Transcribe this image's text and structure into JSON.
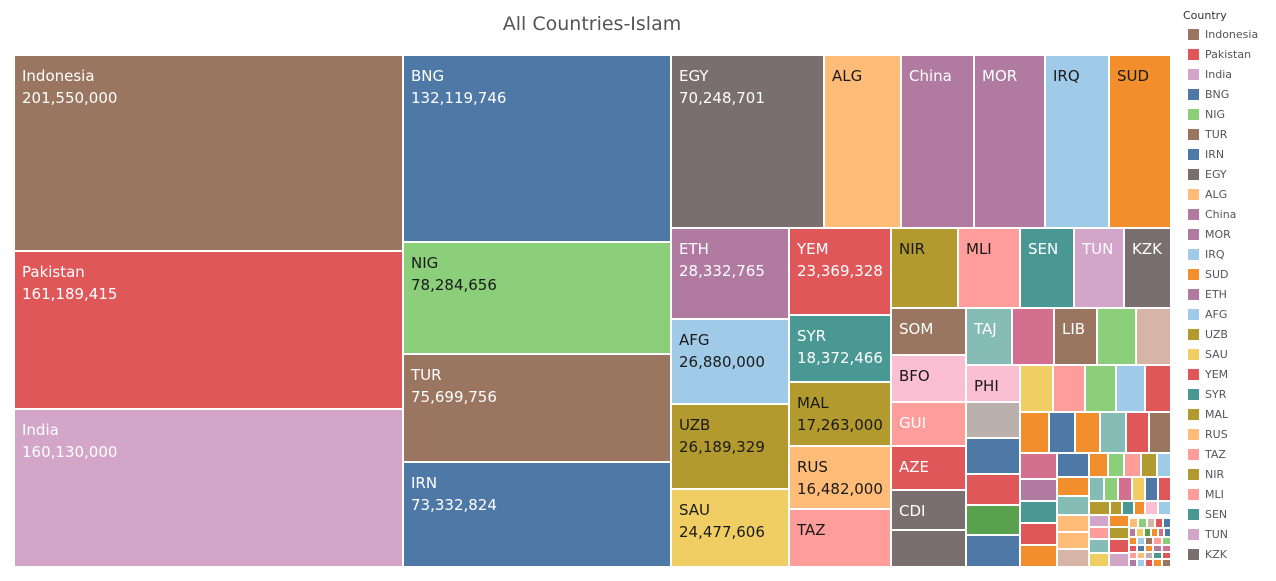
{
  "chart_data": {
    "type": "treemap",
    "title": "All Countries-Islam",
    "legend": {
      "title": "Country",
      "placement": "right",
      "entries": [
        "Indonesia",
        "Pakistan",
        "India",
        "BNG",
        "NIG",
        "TUR",
        "IRN",
        "EGY",
        "ALG",
        "China",
        "MOR",
        "IRQ",
        "SUD",
        "ETH",
        "AFG",
        "UZB",
        "SAU",
        "YEM",
        "SYR",
        "MAL",
        "RUS",
        "TAZ",
        "NIR",
        "MLI",
        "SEN",
        "TUN",
        "KZK"
      ]
    },
    "palette": {
      "Indonesia": "#9a7560",
      "Pakistan": "#e05759",
      "India": "#d3a5c8",
      "BNG": "#4e78a6",
      "NIG": "#8bcf7a",
      "TUR": "#9a7560",
      "IRN": "#4e78a6",
      "EGY": "#796f6e",
      "ALG": "#ffbb78",
      "China": "#b07aa1",
      "MOR": "#b07aa1",
      "IRQ": "#a0cbe8",
      "SUD": "#f28e2c",
      "ETH": "#b07aa1",
      "AFG": "#a0cbe8",
      "UZB": "#b39a2e",
      "SAU": "#f1ce63",
      "YEM": "#e05759",
      "SYR": "#499894",
      "MAL": "#b39a2e",
      "RUS": "#ffbb78",
      "TAZ": "#ff9d9a",
      "NIR": "#b39a2e",
      "MLI": "#ff9d9a",
      "SEN": "#499894",
      "TUN": "#d3a5c8",
      "KZK": "#796f6e",
      "SOM": "#9a7560",
      "TAJ": "#86bcb6",
      "LIB": "#9a7560",
      "BFO": "#fabfd2",
      "PHI": "#fabfd2",
      "GUI": "#ff9d9a",
      "AZE": "#e05759",
      "CDI": "#796f6e"
    },
    "data": [
      {
        "name": "Indonesia",
        "value": 201550000
      },
      {
        "name": "Pakistan",
        "value": 161189415
      },
      {
        "name": "India",
        "value": 160130000
      },
      {
        "name": "BNG",
        "value": 132119746
      },
      {
        "name": "NIG",
        "value": 78284656
      },
      {
        "name": "TUR",
        "value": 75699756
      },
      {
        "name": "IRN",
        "value": 73332824
      },
      {
        "name": "EGY",
        "value": 70248701
      },
      {
        "name": "ETH",
        "value": 28332765
      },
      {
        "name": "AFG",
        "value": 26880000
      },
      {
        "name": "UZB",
        "value": 26189329
      },
      {
        "name": "SAU",
        "value": 24477606
      },
      {
        "name": "YEM",
        "value": 23369328
      },
      {
        "name": "SYR",
        "value": 18372466
      },
      {
        "name": "MAL",
        "value": 17263000
      },
      {
        "name": "RUS",
        "value": 16482000
      }
    ],
    "unlabeled_tiles": [
      "ALG",
      "China",
      "MOR",
      "IRQ",
      "SUD",
      "TAZ",
      "NIR",
      "MLI",
      "SEN",
      "TUN",
      "KZK",
      "SOM",
      "TAJ",
      "LIB",
      "BFO",
      "PHI",
      "GUI",
      "AZE",
      "CDI"
    ]
  }
}
